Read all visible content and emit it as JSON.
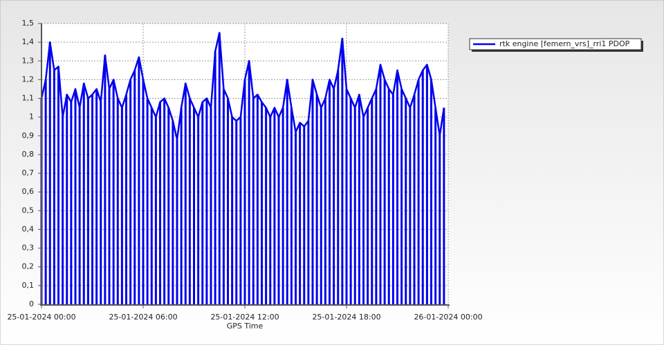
{
  "chart_data": {
    "type": "line",
    "x_label": "GPS Time",
    "xlim": [
      "25-01-2024 00:00",
      "26-01-2024 00:00"
    ],
    "xticks": [
      "25-01-2024 00:00",
      "25-01-2024 06:00",
      "25-01-2024 12:00",
      "25-01-2024 18:00",
      "26-01-2024 00:00"
    ],
    "ylim": [
      0,
      1.5
    ],
    "yticks": [
      0,
      {
        "value": 0.1,
        "label": "0,1"
      },
      {
        "value": 0.2,
        "label": "0,2"
      },
      {
        "value": 0.3,
        "label": "0,3"
      },
      {
        "value": 0.4,
        "label": "0,4"
      },
      {
        "value": 0.5,
        "label": "0,5"
      },
      {
        "value": 0.6,
        "label": "0,6"
      },
      {
        "value": 0.7,
        "label": "0,7"
      },
      {
        "value": 0.8,
        "label": "0,8"
      },
      {
        "value": 0.9,
        "label": "0,9"
      },
      1,
      {
        "value": 1.1,
        "label": "1,1"
      },
      {
        "value": 1.2,
        "label": "1,2"
      },
      {
        "value": 1.3,
        "label": "1,3"
      },
      {
        "value": 1.4,
        "label": "1,4"
      },
      {
        "value": 1.5,
        "label": "1,5"
      }
    ],
    "grid": true,
    "legend": "top-right",
    "x": [
      "25-01-2024 00:00",
      "25-01-2024 00:15",
      "25-01-2024 00:30",
      "25-01-2024 00:45",
      "25-01-2024 01:00",
      "25-01-2024 01:15",
      "25-01-2024 01:30",
      "25-01-2024 01:45",
      "25-01-2024 02:00",
      "25-01-2024 02:15",
      "25-01-2024 02:30",
      "25-01-2024 02:45",
      "25-01-2024 03:00",
      "25-01-2024 03:15",
      "25-01-2024 03:30",
      "25-01-2024 03:45",
      "25-01-2024 04:00",
      "25-01-2024 04:15",
      "25-01-2024 04:30",
      "25-01-2024 04:45",
      "25-01-2024 05:00",
      "25-01-2024 05:15",
      "25-01-2024 05:30",
      "25-01-2024 05:45",
      "25-01-2024 06:00",
      "25-01-2024 06:15",
      "25-01-2024 06:30",
      "25-01-2024 06:45",
      "25-01-2024 07:00",
      "25-01-2024 07:15",
      "25-01-2024 07:30",
      "25-01-2024 07:45",
      "25-01-2024 08:00",
      "25-01-2024 08:15",
      "25-01-2024 08:30",
      "25-01-2024 08:45",
      "25-01-2024 09:00",
      "25-01-2024 09:15",
      "25-01-2024 09:30",
      "25-01-2024 09:45",
      "25-01-2024 10:00",
      "25-01-2024 10:15",
      "25-01-2024 10:30",
      "25-01-2024 10:45",
      "25-01-2024 11:00",
      "25-01-2024 11:15",
      "25-01-2024 11:30",
      "25-01-2024 11:45",
      "25-01-2024 12:00",
      "25-01-2024 12:15",
      "25-01-2024 12:30",
      "25-01-2024 12:45",
      "25-01-2024 13:00",
      "25-01-2024 13:15",
      "25-01-2024 13:30",
      "25-01-2024 13:45",
      "25-01-2024 14:00",
      "25-01-2024 14:15",
      "25-01-2024 14:30",
      "25-01-2024 14:45",
      "25-01-2024 15:00",
      "25-01-2024 15:15",
      "25-01-2024 15:30",
      "25-01-2024 15:45",
      "25-01-2024 16:00",
      "25-01-2024 16:15",
      "25-01-2024 16:30",
      "25-01-2024 16:45",
      "25-01-2024 17:00",
      "25-01-2024 17:15",
      "25-01-2024 17:30",
      "25-01-2024 17:45",
      "25-01-2024 18:00",
      "25-01-2024 18:15",
      "25-01-2024 18:30",
      "25-01-2024 18:45",
      "25-01-2024 19:00",
      "25-01-2024 19:15",
      "25-01-2024 19:30",
      "25-01-2024 19:45",
      "25-01-2024 20:00",
      "25-01-2024 20:15",
      "25-01-2024 20:30",
      "25-01-2024 20:45",
      "25-01-2024 21:00",
      "25-01-2024 21:15",
      "25-01-2024 21:30",
      "25-01-2024 21:45",
      "25-01-2024 22:00",
      "25-01-2024 22:15",
      "25-01-2024 22:30",
      "25-01-2024 22:45",
      "25-01-2024 23:00",
      "25-01-2024 23:15",
      "25-01-2024 23:30",
      "25-01-2024 23:45"
    ],
    "series": [
      {
        "name": "rtk engine [femern_vrs]_rri1 PDOP",
        "color": "#0000ee",
        "values": [
          1.1,
          1.2,
          1.4,
          1.25,
          1.27,
          1.0,
          1.12,
          1.08,
          1.15,
          1.05,
          1.18,
          1.1,
          1.12,
          1.15,
          1.08,
          1.33,
          1.15,
          1.2,
          1.1,
          1.05,
          1.12,
          1.2,
          1.25,
          1.32,
          1.2,
          1.1,
          1.05,
          1.0,
          1.08,
          1.1,
          1.05,
          0.98,
          0.88,
          1.05,
          1.18,
          1.1,
          1.05,
          1.0,
          1.08,
          1.1,
          1.05,
          1.35,
          1.45,
          1.15,
          1.1,
          1.0,
          0.98,
          1.0,
          1.2,
          1.3,
          1.1,
          1.12,
          1.08,
          1.05,
          1.0,
          1.05,
          1.0,
          1.05,
          1.2,
          1.05,
          0.92,
          0.97,
          0.95,
          0.98,
          1.2,
          1.12,
          1.05,
          1.1,
          1.2,
          1.15,
          1.25,
          1.42,
          1.15,
          1.1,
          1.05,
          1.12,
          1.0,
          1.05,
          1.1,
          1.15,
          1.28,
          1.2,
          1.15,
          1.12,
          1.25,
          1.15,
          1.1,
          1.05,
          1.12,
          1.2,
          1.25,
          1.28,
          1.2,
          1.05,
          0.9,
          1.05
        ]
      }
    ]
  }
}
